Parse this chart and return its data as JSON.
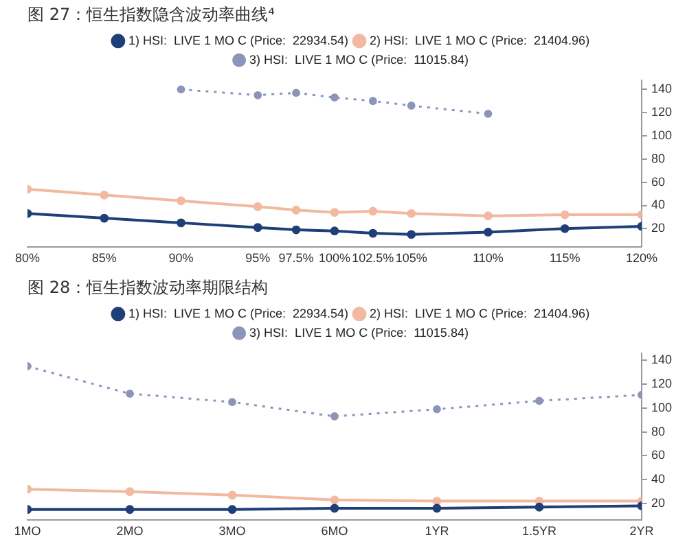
{
  "chart_data": [
    {
      "type": "line",
      "title": "图 27：恒生指数隐含波动率曲线⁴",
      "x": [
        80,
        85,
        90,
        95,
        97.5,
        100,
        102.5,
        105,
        110,
        115,
        120
      ],
      "xlim": [
        80,
        120
      ],
      "xticks": [
        {
          "value": 80,
          "label": "80%"
        },
        {
          "value": 85,
          "label": "85%"
        },
        {
          "value": 90,
          "label": "90%"
        },
        {
          "value": 95,
          "label": "95%"
        },
        {
          "value": 97.5,
          "label": "97.5%"
        },
        {
          "value": 100,
          "label": "100%"
        },
        {
          "value": 102.5,
          "label": "102.5%"
        },
        {
          "value": 105,
          "label": "105%"
        },
        {
          "value": 110,
          "label": "110%"
        },
        {
          "value": 115,
          "label": "115%"
        },
        {
          "value": 120,
          "label": "120%"
        }
      ],
      "ylim": [
        4,
        148
      ],
      "yticks": [
        20,
        40,
        60,
        80,
        100,
        120,
        140
      ],
      "grid": false,
      "legend": "top",
      "marker": "circle",
      "series": [
        {
          "name": "1) HSI:  LIVE 1 MO C (Price:  22934.54)",
          "color": "#1f3f78",
          "line_style": "solid",
          "values": [
            33,
            29,
            25,
            21,
            19,
            18,
            16,
            15,
            17,
            20,
            22
          ]
        },
        {
          "name": "2) HSI:  LIVE 1 MO C (Price:  21404.96)",
          "color": "#f2b9a0",
          "line_style": "solid",
          "values": [
            54,
            49,
            44,
            39,
            36,
            34,
            35,
            33,
            31,
            32,
            32
          ]
        },
        {
          "name": "3) HSI:  LIVE 1 MO C (Price:  11015.84)",
          "color": "#8c95b8",
          "line_style": "dotted",
          "values": [
            null,
            null,
            140,
            135,
            137,
            133,
            130,
            126,
            119,
            null,
            null
          ]
        }
      ]
    },
    {
      "type": "line",
      "title": "图 28：恒生指数波动率期限结构",
      "categories": [
        "1MO",
        "2MO",
        "3MO",
        "6MO",
        "1YR",
        "1.5YR",
        "2YR"
      ],
      "ylim": [
        6,
        146
      ],
      "yticks": [
        20,
        40,
        60,
        80,
        100,
        120,
        140
      ],
      "grid": false,
      "legend": "top",
      "marker": "circle",
      "series": [
        {
          "name": "1) HSI:  LIVE 1 MO C (Price:  22934.54)",
          "color": "#1f3f78",
          "line_style": "solid",
          "values": [
            15,
            15,
            15,
            16,
            16,
            17,
            18
          ]
        },
        {
          "name": "2) HSI:  LIVE 1 MO C (Price:  21404.96)",
          "color": "#f2b9a0",
          "line_style": "solid",
          "values": [
            32,
            30,
            27,
            23,
            22,
            22,
            22
          ]
        },
        {
          "name": "3) HSI:  LIVE 1 MO C (Price:  11015.84)",
          "color": "#8c95b8",
          "line_style": "dotted",
          "values": [
            135,
            112,
            105,
            93,
            99,
            106,
            111
          ]
        }
      ]
    }
  ]
}
